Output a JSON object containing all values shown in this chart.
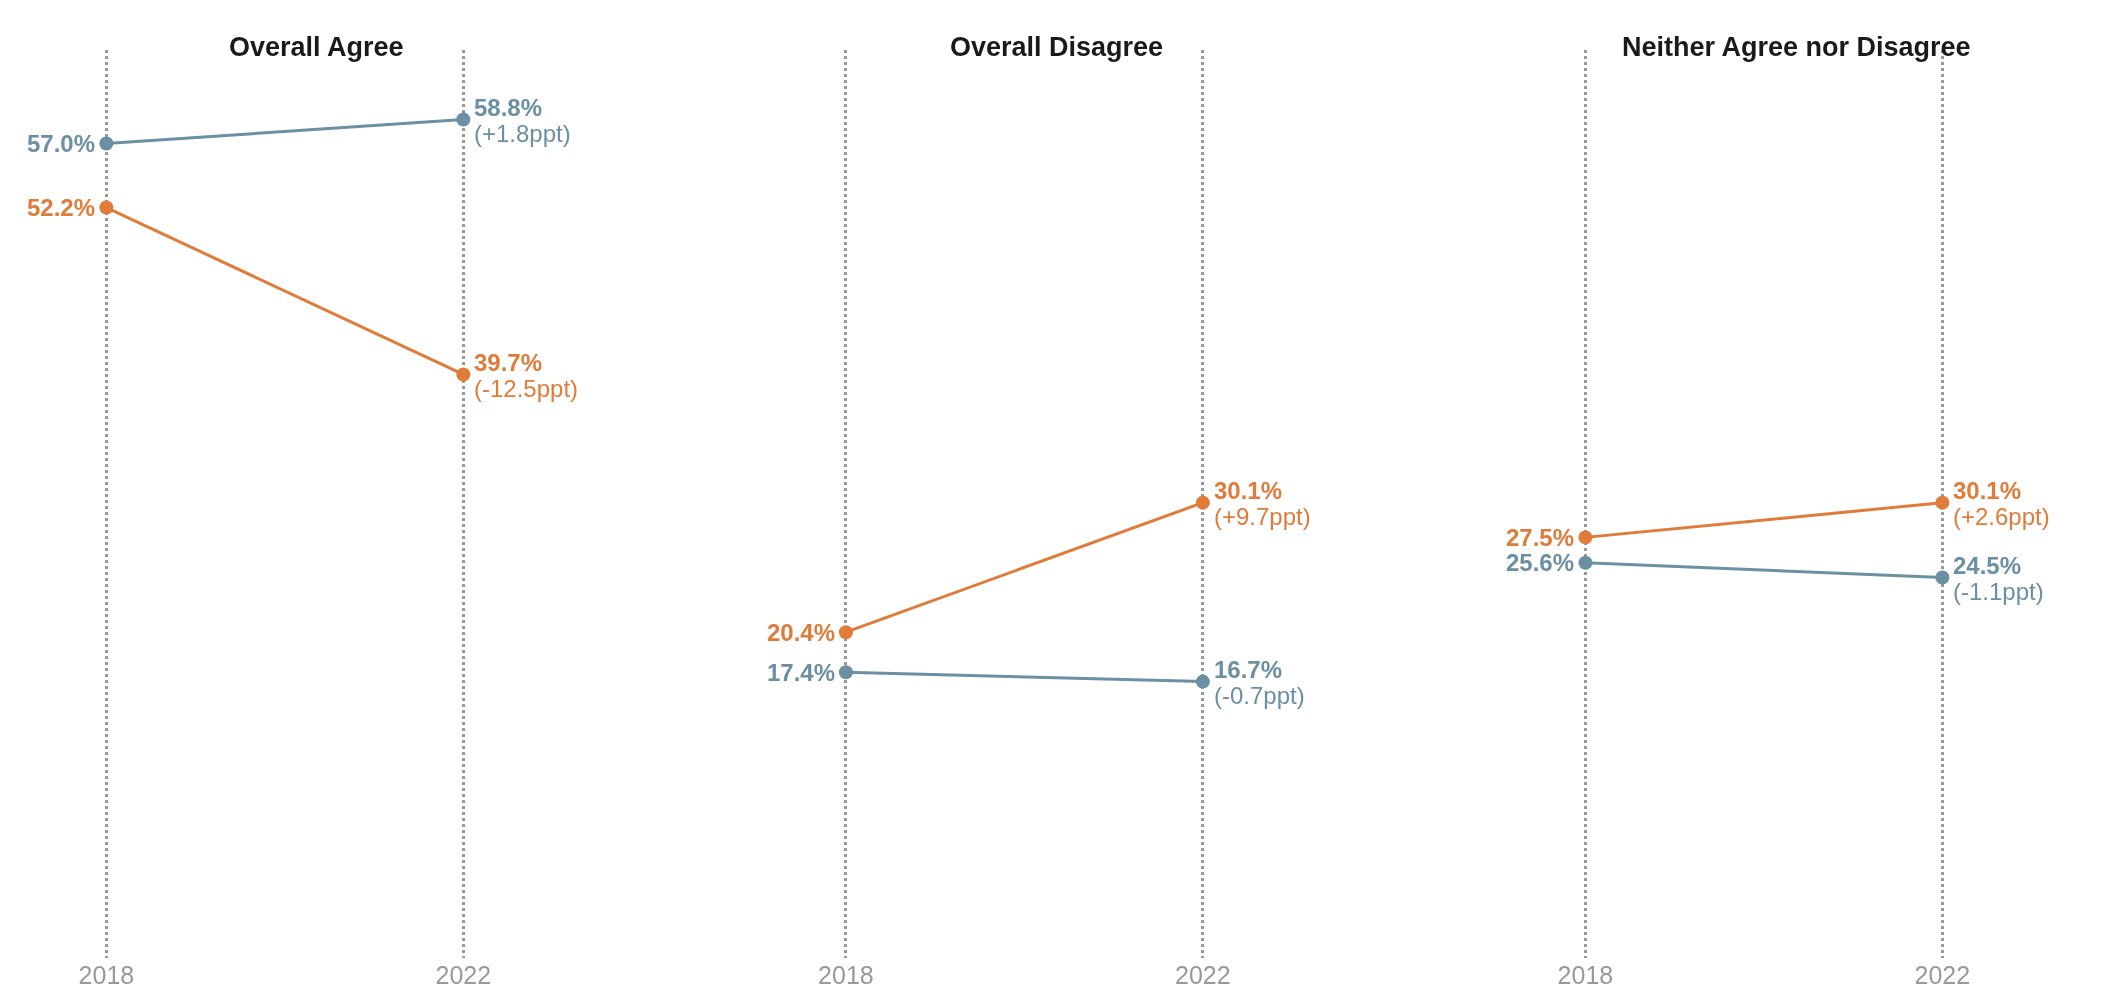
{
  "chart_data": [
    {
      "type": "line",
      "title": "Overall Agree",
      "categories": [
        "2018",
        "2022"
      ],
      "ylim": [
        -4,
        64
      ],
      "tick_labels": "x",
      "grid": "x",
      "marker": "circle",
      "line_style": "solid",
      "series": [
        {
          "color": "#6b8fa3",
          "values": [
            57.0,
            58.8
          ],
          "value_labels": [
            "57.0%",
            "58.8%"
          ]
        },
        {
          "color": "#e07b39",
          "values": [
            52.2,
            39.7
          ],
          "value_labels": [
            "52.2%",
            "39.7%"
          ]
        }
      ],
      "annotations": [
        {
          "text": "(+1.8ppt)",
          "x": "2022",
          "y": 58.8
        },
        {
          "text": "(-12.5ppt)",
          "x": "2022",
          "y": 39.7
        }
      ]
    },
    {
      "type": "line",
      "title": "Overall Disagree",
      "categories": [
        "2018",
        "2022"
      ],
      "ylim": [
        -4,
        64
      ],
      "tick_labels": "x",
      "grid": "x",
      "marker": "circle",
      "line_style": "solid",
      "series": [
        {
          "color": "#e07b39",
          "values": [
            20.4,
            30.1
          ],
          "value_labels": [
            "20.4%",
            "30.1%"
          ]
        },
        {
          "color": "#6b8fa3",
          "values": [
            17.4,
            16.7
          ],
          "value_labels": [
            "17.4%",
            "16.7%"
          ]
        }
      ],
      "annotations": [
        {
          "text": "(+9.7ppt)",
          "x": "2022",
          "y": 30.1
        },
        {
          "text": "(-0.7ppt)",
          "x": "2022",
          "y": 16.7
        }
      ]
    },
    {
      "type": "line",
      "title": "Neither Agree nor Disagree",
      "categories": [
        "2018",
        "2022"
      ],
      "ylim": [
        -4,
        64
      ],
      "tick_labels": "x",
      "grid": "x",
      "marker": "circle",
      "line_style": "solid",
      "series": [
        {
          "color": "#e07b39",
          "values": [
            27.5,
            30.1
          ],
          "value_labels": [
            "27.5%",
            "30.1%"
          ]
        },
        {
          "color": "#6b8fa3",
          "values": [
            25.6,
            24.5
          ],
          "value_labels": [
            "25.6%",
            "24.5%"
          ]
        }
      ],
      "annotations": [
        {
          "text": "(+2.6ppt)",
          "x": "2022",
          "y": 30.1
        },
        {
          "text": "(-1.1ppt)",
          "x": "2022",
          "y": 24.5
        }
      ]
    }
  ]
}
